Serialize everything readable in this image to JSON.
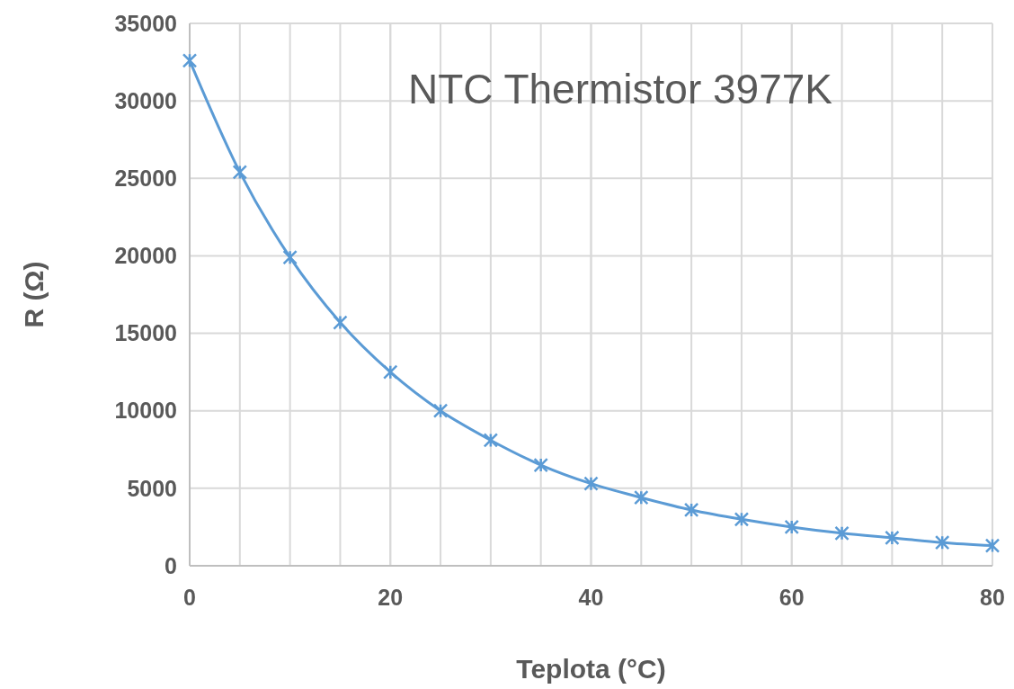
{
  "chart_data": {
    "type": "line",
    "title": "NTC Thermistor 3977K",
    "xlabel": "Teplota (°C)",
    "ylabel": "R (Ω)",
    "x": [
      0,
      5,
      10,
      15,
      20,
      25,
      30,
      35,
      40,
      45,
      50,
      55,
      60,
      65,
      70,
      75,
      80
    ],
    "series": [
      {
        "color": "#5b9bd5",
        "values": [
          32600,
          25400,
          19900,
          15700,
          12500,
          10000,
          8100,
          6500,
          5300,
          4400,
          3600,
          3000,
          2500,
          2100,
          1800,
          1500,
          1300
        ]
      }
    ],
    "xlim": [
      0,
      80
    ],
    "xticks": [
      0,
      20,
      40,
      60,
      80
    ],
    "ylim": [
      0,
      35000
    ],
    "yticks": [
      0,
      5000,
      10000,
      15000,
      20000,
      25000,
      30000,
      35000
    ],
    "grid": true,
    "marker": "cross",
    "line_style": "solid"
  }
}
